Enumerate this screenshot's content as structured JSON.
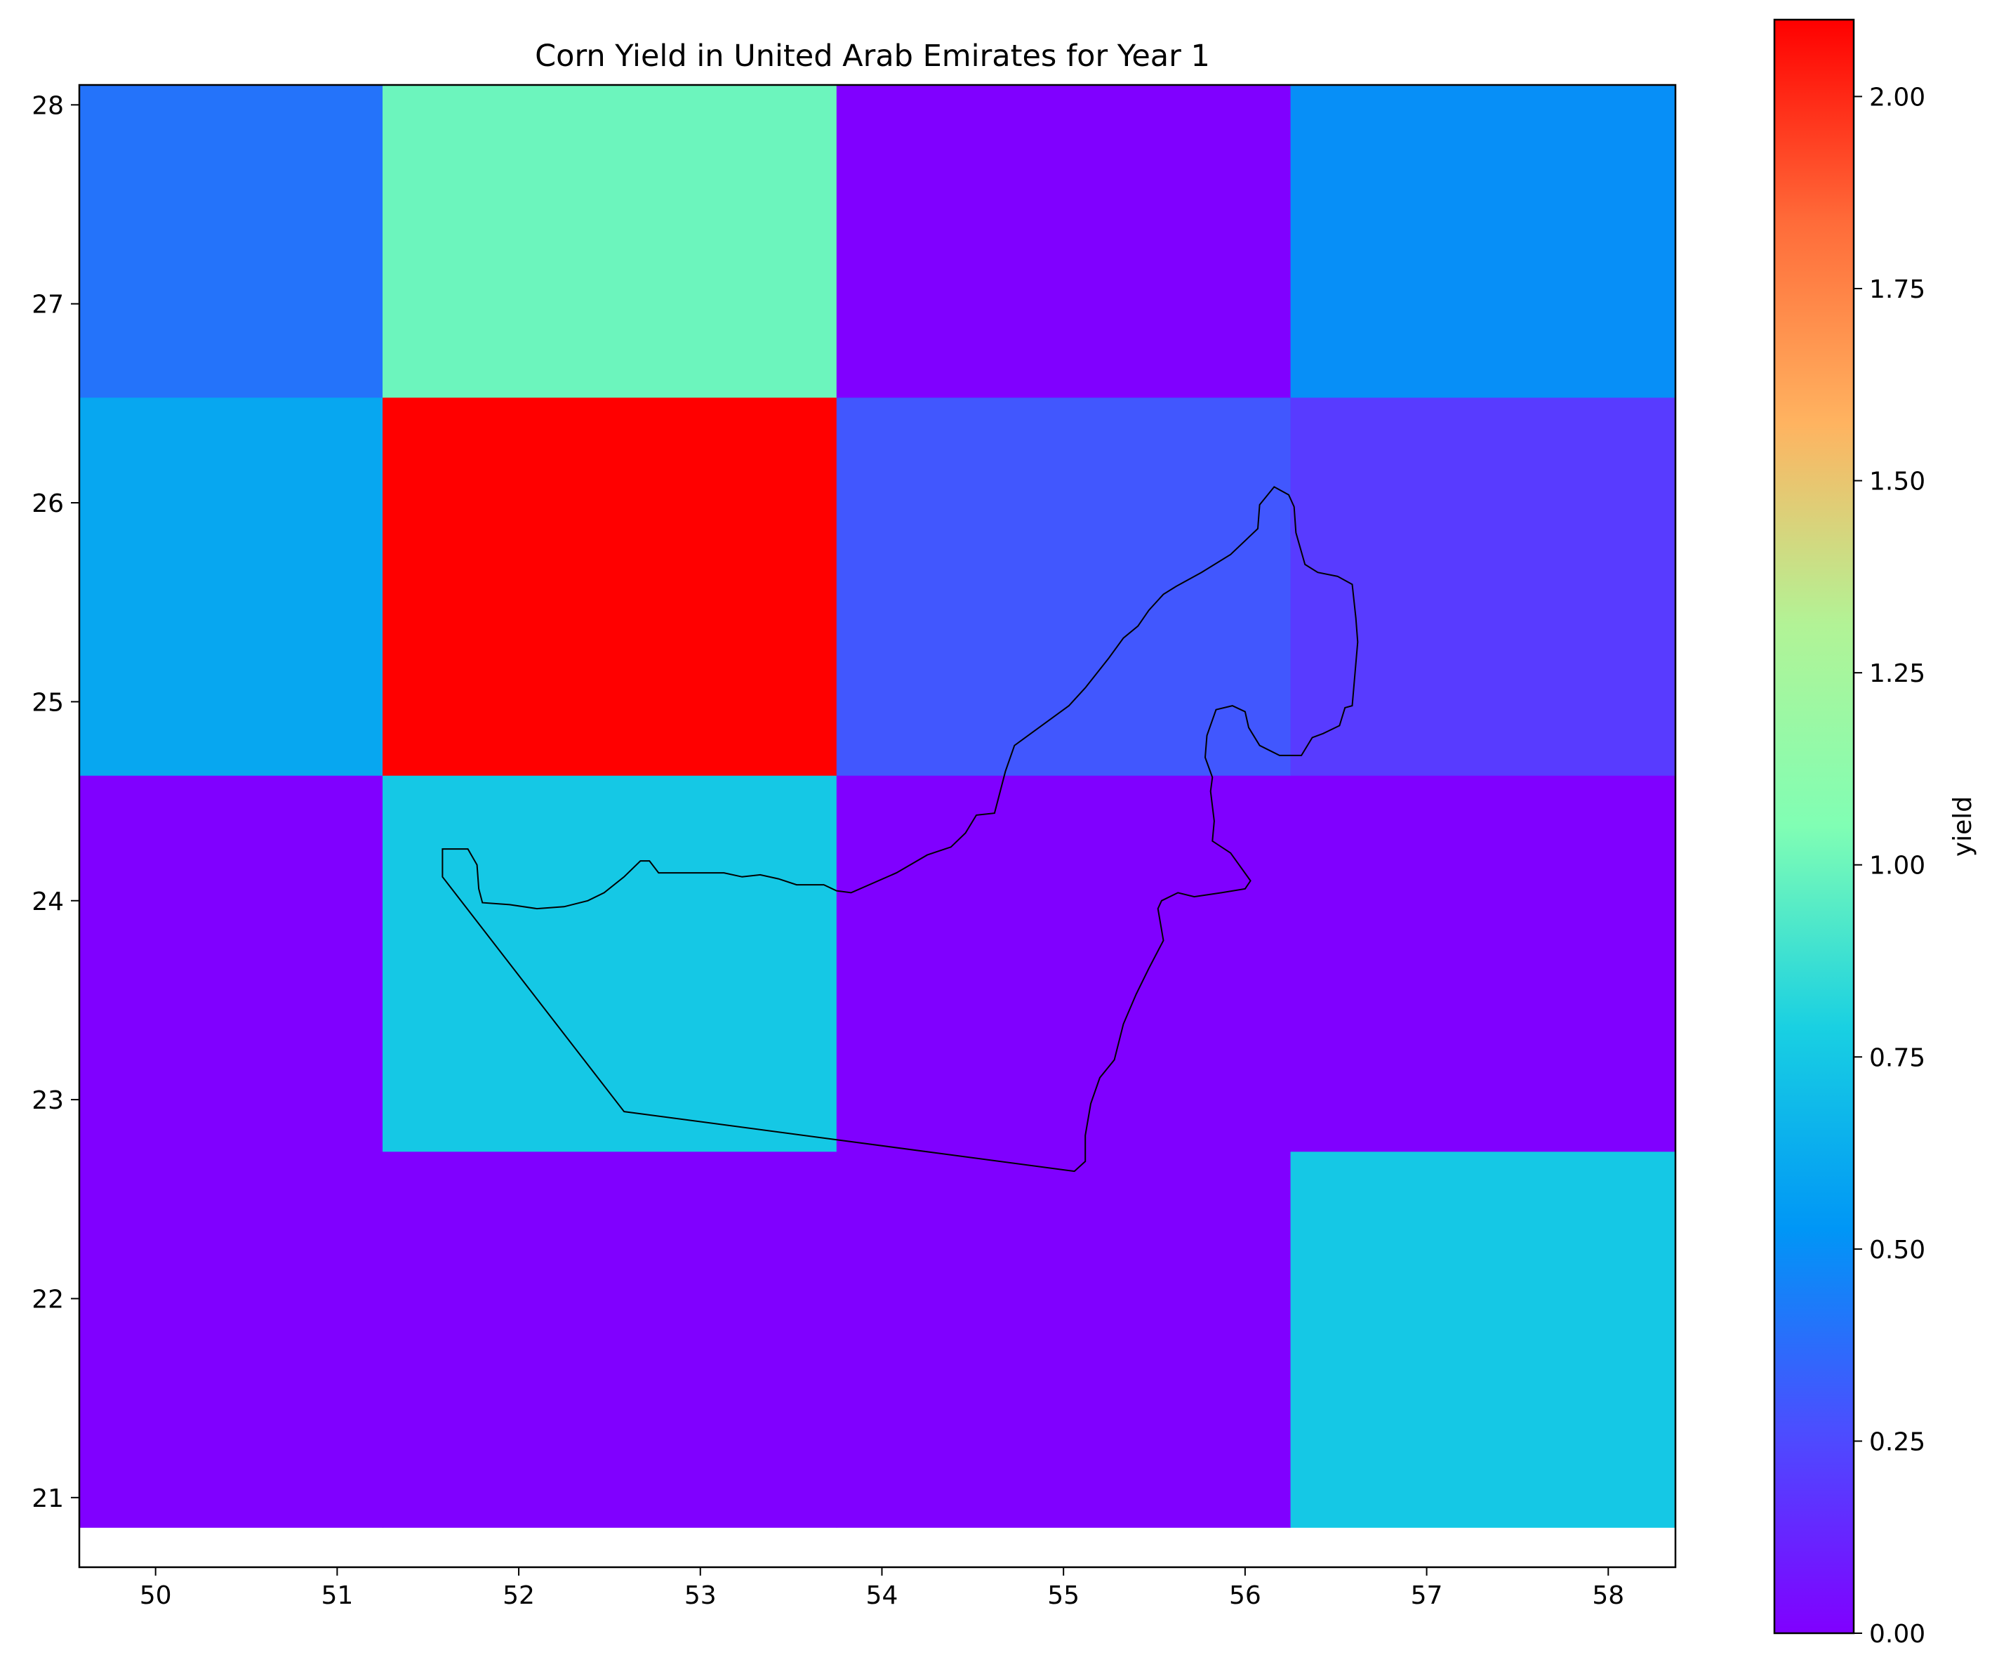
{
  "chart_data": {
    "type": "heatmap",
    "title": "Corn Yield in United Arab Emirates for Year 1",
    "xlabel": "",
    "ylabel": "",
    "xlim": [
      49.58,
      58.37
    ],
    "ylim": [
      20.65,
      28.1
    ],
    "x_ticks": [
      50,
      51,
      52,
      53,
      54,
      55,
      56,
      57,
      58
    ],
    "y_ticks": [
      21,
      22,
      23,
      24,
      25,
      26,
      27,
      28
    ],
    "x_edges": [
      49.58,
      51.25,
      53.75,
      56.25,
      58.37
    ],
    "y_edges": [
      20.85,
      22.74,
      24.63,
      26.53,
      28.1
    ],
    "values": [
      [
        0.0,
        0.0,
        0.0,
        0.75
      ],
      [
        0.0,
        0.75,
        0.0,
        0.0
      ],
      [
        0.6,
        2.1,
        0.3,
        0.2
      ],
      [
        0.4,
        1.0,
        0.0,
        0.5
      ]
    ],
    "colormap": "rainbow",
    "colorbar": {
      "label": "yield",
      "min": 0.0,
      "max": 2.1,
      "ticks": [
        "0.00",
        "0.25",
        "0.50",
        "0.75",
        "1.00",
        "1.25",
        "1.50",
        "1.75",
        "2.00"
      ]
    },
    "outline": [
      [
        51.58,
        24.26
      ],
      [
        51.72,
        24.26
      ],
      [
        51.77,
        24.18
      ],
      [
        51.78,
        24.06
      ],
      [
        51.8,
        23.99
      ],
      [
        51.95,
        23.98
      ],
      [
        52.1,
        23.96
      ],
      [
        52.25,
        23.97
      ],
      [
        52.38,
        24.0
      ],
      [
        52.47,
        24.04
      ],
      [
        52.58,
        24.12
      ],
      [
        52.67,
        24.2
      ],
      [
        52.72,
        24.2
      ],
      [
        52.77,
        24.14
      ],
      [
        52.98,
        24.14
      ],
      [
        53.13,
        24.14
      ],
      [
        53.23,
        24.12
      ],
      [
        53.33,
        24.13
      ],
      [
        53.43,
        24.11
      ],
      [
        53.53,
        24.08
      ],
      [
        53.68,
        24.08
      ],
      [
        53.75,
        24.05
      ],
      [
        53.83,
        24.04
      ],
      [
        54.08,
        24.14
      ],
      [
        54.25,
        24.23
      ],
      [
        54.38,
        24.27
      ],
      [
        54.46,
        24.34
      ],
      [
        54.52,
        24.43
      ],
      [
        54.62,
        24.44
      ],
      [
        54.68,
        24.65
      ],
      [
        54.73,
        24.78
      ],
      [
        54.82,
        24.84
      ],
      [
        55.03,
        24.98
      ],
      [
        55.12,
        25.07
      ],
      [
        55.25,
        25.22
      ],
      [
        55.33,
        25.32
      ],
      [
        55.41,
        25.38
      ],
      [
        55.47,
        25.46
      ],
      [
        55.55,
        25.54
      ],
      [
        55.62,
        25.58
      ],
      [
        55.76,
        25.65
      ],
      [
        55.92,
        25.74
      ],
      [
        56.07,
        25.87
      ],
      [
        56.08,
        25.99
      ],
      [
        56.16,
        26.08
      ],
      [
        56.24,
        26.04
      ],
      [
        56.27,
        25.98
      ],
      [
        56.28,
        25.85
      ],
      [
        56.33,
        25.69
      ],
      [
        56.4,
        25.65
      ],
      [
        56.51,
        25.63
      ],
      [
        56.59,
        25.59
      ],
      [
        56.61,
        25.42
      ],
      [
        56.62,
        25.3
      ],
      [
        56.59,
        24.98
      ],
      [
        56.55,
        24.97
      ],
      [
        56.52,
        24.88
      ],
      [
        56.43,
        24.84
      ],
      [
        56.37,
        24.82
      ],
      [
        56.31,
        24.73
      ],
      [
        56.19,
        24.73
      ],
      [
        56.08,
        24.78
      ],
      [
        56.02,
        24.87
      ],
      [
        56.0,
        24.95
      ],
      [
        55.93,
        24.98
      ],
      [
        55.84,
        24.96
      ],
      [
        55.79,
        24.83
      ],
      [
        55.78,
        24.72
      ],
      [
        55.82,
        24.62
      ],
      [
        55.81,
        24.55
      ],
      [
        55.83,
        24.4
      ],
      [
        55.82,
        24.3
      ],
      [
        55.92,
        24.24
      ],
      [
        56.03,
        24.1
      ],
      [
        56.0,
        24.06
      ],
      [
        55.87,
        24.04
      ],
      [
        55.72,
        24.02
      ],
      [
        55.63,
        24.04
      ],
      [
        55.54,
        24.0
      ],
      [
        55.52,
        23.96
      ],
      [
        55.55,
        23.8
      ],
      [
        55.47,
        23.66
      ],
      [
        55.4,
        23.53
      ],
      [
        55.33,
        23.38
      ],
      [
        55.28,
        23.2
      ],
      [
        55.2,
        23.11
      ],
      [
        55.15,
        22.98
      ],
      [
        55.12,
        22.82
      ],
      [
        55.12,
        22.69
      ],
      [
        55.06,
        22.64
      ],
      [
        52.58,
        22.94
      ],
      [
        51.58,
        24.12
      ],
      [
        51.58,
        24.26
      ]
    ]
  }
}
